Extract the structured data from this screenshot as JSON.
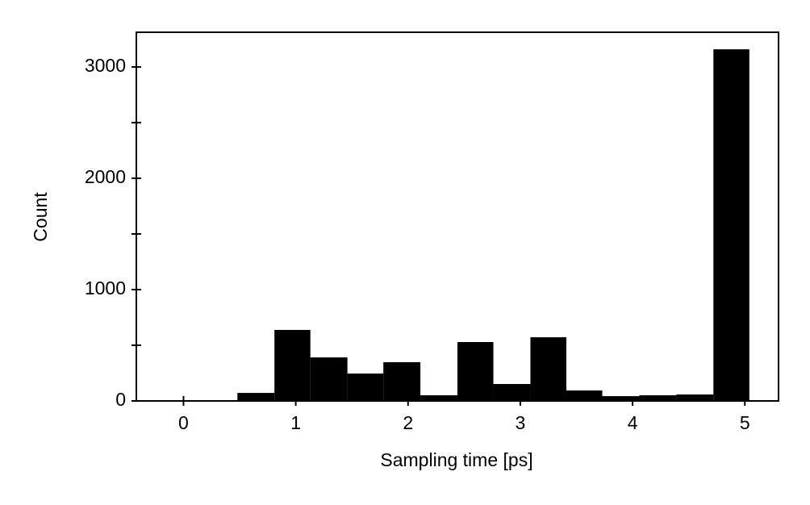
{
  "chart_data": {
    "type": "histogram",
    "xlabel": "Sampling time [ps]",
    "ylabel": "Count",
    "bins": [
      0.0,
      0.16,
      0.48,
      0.81,
      1.13,
      1.46,
      1.78,
      2.11,
      2.44,
      2.76,
      3.09,
      3.41,
      3.73,
      4.06,
      4.39,
      4.72,
      5.04
    ],
    "values": [
      5,
      5,
      72,
      638,
      391,
      246,
      348,
      51,
      529,
      152,
      572,
      94,
      43,
      51,
      58,
      3159
    ],
    "color": "#000000",
    "xlim": [
      -0.42,
      5.3
    ],
    "xticks": [
      0,
      1,
      2,
      3,
      4,
      5
    ],
    "ylim": [
      0,
      3312
    ],
    "yticks": [
      0,
      1000,
      2000,
      3000
    ],
    "yminorticks": [
      500,
      1500,
      2500
    ]
  }
}
